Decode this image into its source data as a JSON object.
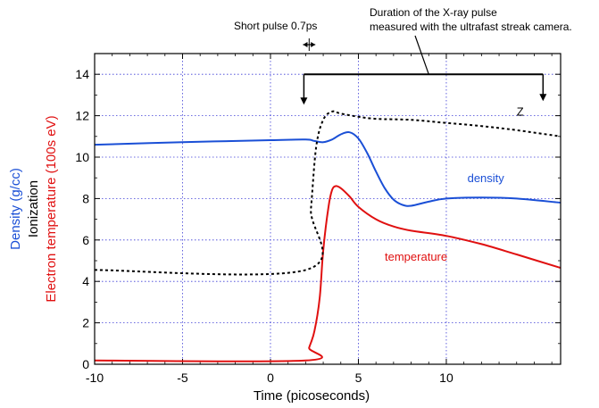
{
  "chart_data": {
    "type": "line",
    "xlabel": "Time (picoseconds)",
    "ylabel_lines": [
      {
        "text": "Density (g/cc)",
        "color": "#1a4fd6"
      },
      {
        "text": "Ionization",
        "color": "#000000"
      },
      {
        "text": "Electron temperature (100s eV)",
        "color": "#e01010"
      }
    ],
    "xlim": [
      -10,
      16.5
    ],
    "ylim": [
      0,
      15
    ],
    "xticks": [
      -10,
      -5,
      0,
      5,
      10
    ],
    "yticks": [
      0,
      2,
      4,
      6,
      8,
      10,
      12,
      14
    ],
    "grid": true,
    "series": [
      {
        "name": "density",
        "color": "#1a4fd6",
        "style": "solid",
        "x": [
          -10,
          -5,
          0,
          2,
          2.5,
          3,
          3.5,
          4,
          4.5,
          5,
          5.5,
          6,
          6.5,
          7,
          7.5,
          8,
          9,
          10,
          12,
          14,
          16.5
        ],
        "y": [
          10.6,
          10.72,
          10.82,
          10.85,
          10.78,
          10.72,
          10.85,
          11.1,
          11.2,
          10.9,
          10.2,
          9.3,
          8.5,
          7.95,
          7.7,
          7.65,
          7.85,
          8.0,
          8.05,
          8.0,
          7.8
        ]
      },
      {
        "name": "temperature",
        "color": "#e01010",
        "style": "solid",
        "x": [
          -10,
          2,
          2.2,
          2.5,
          2.8,
          3.0,
          3.3,
          3.5,
          3.7,
          4.0,
          4.5,
          5,
          6,
          7,
          8,
          10,
          12,
          14,
          16.5
        ],
        "y": [
          0.18,
          0.18,
          0.8,
          1.6,
          3.2,
          5.5,
          7.6,
          8.4,
          8.6,
          8.5,
          8.1,
          7.6,
          7.0,
          6.65,
          6.45,
          6.2,
          5.8,
          5.3,
          4.65
        ]
      },
      {
        "name": "Z",
        "color": "#000000",
        "style": "dashed",
        "x": [
          -10,
          2,
          2.3,
          2.6,
          3.0,
          3.5,
          4.0,
          5,
          6,
          8,
          10,
          12,
          14,
          16.5
        ],
        "y": [
          4.55,
          4.55,
          7.5,
          10.5,
          11.8,
          12.2,
          12.1,
          11.95,
          11.85,
          11.8,
          11.65,
          11.5,
          11.3,
          11.0
        ]
      }
    ],
    "series_labels": [
      {
        "text": "density",
        "x": 11.2,
        "y": 8.8,
        "color": "#1a4fd6"
      },
      {
        "text": "temperature",
        "x": 6.5,
        "y": 5.0,
        "color": "#e01010"
      },
      {
        "text": "Z",
        "x": 14.0,
        "y": 12.0,
        "color": "#000000"
      }
    ],
    "annotations": {
      "short_pulse": {
        "text": "Short pulse 0.7ps",
        "x_from": 1.85,
        "x_to": 2.55
      },
      "duration": {
        "lines": [
          "Duration of the X-ray pulse",
          "measured with the ultrafast streak camera."
        ],
        "bracket_x_from": 1.9,
        "bracket_x_to": 15.5,
        "bracket_y": 14.0,
        "pointer_x": 9.0
      }
    }
  }
}
